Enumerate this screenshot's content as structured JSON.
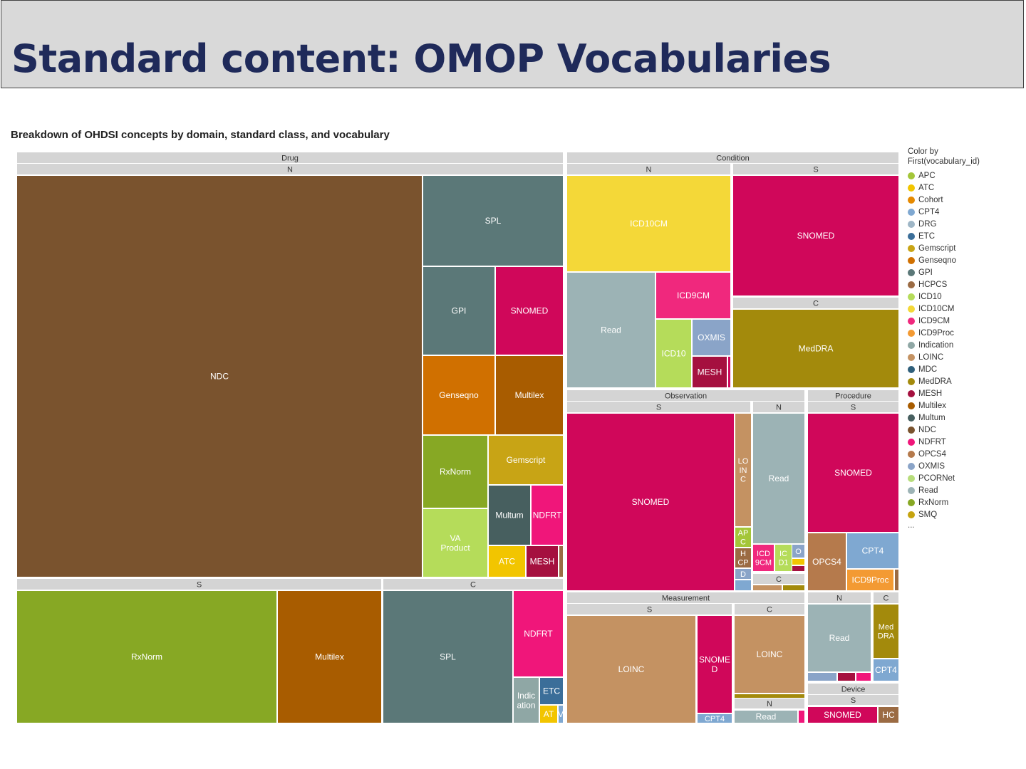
{
  "slide": {
    "title": "Standard content: OMOP Vocabularies"
  },
  "chart_data": {
    "type": "treemap",
    "title": "Breakdown of OHDSI concepts by domain, standard class, and vocabulary",
    "legend": {
      "title_line1": "Color by",
      "title_line2": "First(vocabulary_id)",
      "more": "...",
      "placement": "right",
      "items": [
        {
          "label": "APC",
          "color": "#a4c639"
        },
        {
          "label": "ATC",
          "color": "#f2c500"
        },
        {
          "label": "Cohort",
          "color": "#e68a00"
        },
        {
          "label": "CPT4",
          "color": "#7fa8d1"
        },
        {
          "label": "DRG",
          "color": "#9eb6c6"
        },
        {
          "label": "ETC",
          "color": "#3b6e99"
        },
        {
          "label": "Gemscript",
          "color": "#c8a415"
        },
        {
          "label": "Genseqno",
          "color": "#d07000"
        },
        {
          "label": "GPI",
          "color": "#5b7878"
        },
        {
          "label": "HCPCS",
          "color": "#9b6b43"
        },
        {
          "label": "ICD10",
          "color": "#b5dc5a"
        },
        {
          "label": "ICD10CM",
          "color": "#f4d838"
        },
        {
          "label": "ICD9CM",
          "color": "#f0287d"
        },
        {
          "label": "ICD9Proc",
          "color": "#f39a33"
        },
        {
          "label": "Indication",
          "color": "#8fa7a5"
        },
        {
          "label": "LOINC",
          "color": "#c49262"
        },
        {
          "label": "MDC",
          "color": "#2f5f7a"
        },
        {
          "label": "MedDRA",
          "color": "#a38a0c"
        },
        {
          "label": "MESH",
          "color": "#a5103f"
        },
        {
          "label": "Multilex",
          "color": "#a85c00"
        },
        {
          "label": "Multum",
          "color": "#475f5f"
        },
        {
          "label": "NDC",
          "color": "#7a532e"
        },
        {
          "label": "NDFRT",
          "color": "#f0167a"
        },
        {
          "label": "OPCS4",
          "color": "#b57a4c"
        },
        {
          "label": "OXMIS",
          "color": "#8aa4c8"
        },
        {
          "label": "PCORNet",
          "color": "#b7dd7b"
        },
        {
          "label": "Read",
          "color": "#9cb3b5"
        },
        {
          "label": "RxNorm",
          "color": "#87a824"
        },
        {
          "label": "SMQ",
          "color": "#c6a40f"
        }
      ]
    },
    "headers": [
      {
        "text": "Drug"
      },
      {
        "text": "N"
      },
      {
        "text": "S"
      },
      {
        "text": "C"
      },
      {
        "text": "Condition"
      },
      {
        "text": "N"
      },
      {
        "text": "S"
      },
      {
        "text": "C"
      },
      {
        "text": "Observation"
      },
      {
        "text": "S"
      },
      {
        "text": "N"
      },
      {
        "text": "C"
      },
      {
        "text": "Procedure"
      },
      {
        "text": "S"
      },
      {
        "text": "Measurement"
      },
      {
        "text": "S"
      },
      {
        "text": "C"
      },
      {
        "text": "N"
      },
      {
        "text": "N"
      },
      {
        "text": "C"
      },
      {
        "text": "Device"
      },
      {
        "text": "S"
      }
    ],
    "cells": [
      {
        "domain": "Drug",
        "class": "N",
        "vocabulary": "NDC",
        "label": "NDC",
        "color": "#7a532e"
      },
      {
        "domain": "Drug",
        "class": "N",
        "vocabulary": "SPL",
        "label": "SPL",
        "color": "#5b7878"
      },
      {
        "domain": "Drug",
        "class": "N",
        "vocabulary": "GPI",
        "label": "GPI",
        "color": "#5b7878"
      },
      {
        "domain": "Drug",
        "class": "N",
        "vocabulary": "SNOMED",
        "label": "SNOMED",
        "color": "#d0075a"
      },
      {
        "domain": "Drug",
        "class": "N",
        "vocabulary": "Genseqno",
        "label": "Genseqno",
        "color": "#d07000"
      },
      {
        "domain": "Drug",
        "class": "N",
        "vocabulary": "Multilex",
        "label": "Multilex",
        "color": "#a85c00"
      },
      {
        "domain": "Drug",
        "class": "N",
        "vocabulary": "RxNorm",
        "label": "RxNorm",
        "color": "#87a824"
      },
      {
        "domain": "Drug",
        "class": "N",
        "vocabulary": "Gemscript",
        "label": "Gemscript",
        "color": "#c8a415"
      },
      {
        "domain": "Drug",
        "class": "N",
        "vocabulary": "VA Product",
        "label": "VA Product",
        "color": "#b5dc5a"
      },
      {
        "domain": "Drug",
        "class": "N",
        "vocabulary": "Multum",
        "label": "Multum",
        "color": "#475f5f"
      },
      {
        "domain": "Drug",
        "class": "N",
        "vocabulary": "NDFRT",
        "label": "NDFRT",
        "color": "#f0167a"
      },
      {
        "domain": "Drug",
        "class": "N",
        "vocabulary": "ATC",
        "label": "ATC",
        "color": "#f2c500"
      },
      {
        "domain": "Drug",
        "class": "N",
        "vocabulary": "MESH",
        "label": "MESH",
        "color": "#a5103f"
      },
      {
        "domain": "Drug",
        "class": "N",
        "vocabulary": "",
        "label": "",
        "color": "#9b6b43"
      },
      {
        "domain": "Drug",
        "class": "S",
        "vocabulary": "RxNorm",
        "label": "RxNorm",
        "color": "#87a824"
      },
      {
        "domain": "Drug",
        "class": "S",
        "vocabulary": "Multilex",
        "label": "Multilex",
        "color": "#a85c00"
      },
      {
        "domain": "Drug",
        "class": "C",
        "vocabulary": "SPL",
        "label": "SPL",
        "color": "#5b7878"
      },
      {
        "domain": "Drug",
        "class": "C",
        "vocabulary": "NDFRT",
        "label": "NDFRT",
        "color": "#f0167a"
      },
      {
        "domain": "Drug",
        "class": "C",
        "vocabulary": "Indication",
        "label": "Indic ation",
        "color": "#8fa7a5"
      },
      {
        "domain": "Drug",
        "class": "C",
        "vocabulary": "ETC",
        "label": "ETC",
        "color": "#3b6e99"
      },
      {
        "domain": "Drug",
        "class": "C",
        "vocabulary": "ATC",
        "label": "AT",
        "color": "#f2c500"
      },
      {
        "domain": "Drug",
        "class": "C",
        "vocabulary": "",
        "label": "V",
        "color": "#7fa8d1"
      },
      {
        "domain": "Condition",
        "class": "N",
        "vocabulary": "ICD10CM",
        "label": "ICD10CM",
        "color": "#f4d838"
      },
      {
        "domain": "Condition",
        "class": "N",
        "vocabulary": "Read",
        "label": "Read",
        "color": "#9cb3b5"
      },
      {
        "domain": "Condition",
        "class": "N",
        "vocabulary": "ICD9CM",
        "label": "ICD9CM",
        "color": "#f0287d"
      },
      {
        "domain": "Condition",
        "class": "N",
        "vocabulary": "ICD10",
        "label": "ICD10",
        "color": "#b5dc5a"
      },
      {
        "domain": "Condition",
        "class": "N",
        "vocabulary": "OXMIS",
        "label": "OXMIS",
        "color": "#8aa4c8"
      },
      {
        "domain": "Condition",
        "class": "N",
        "vocabulary": "MESH",
        "label": "MESH",
        "color": "#a5103f"
      },
      {
        "domain": "Condition",
        "class": "N",
        "vocabulary": "",
        "label": "",
        "color": "#d0075a"
      },
      {
        "domain": "Condition",
        "class": "S",
        "vocabulary": "SNOMED",
        "label": "SNOMED",
        "color": "#d0075a"
      },
      {
        "domain": "Condition",
        "class": "C",
        "vocabulary": "MedDRA",
        "label": "MedDRA",
        "color": "#a38a0c"
      },
      {
        "domain": "Observation",
        "class": "S",
        "vocabulary": "SNOMED",
        "label": "SNOMED",
        "color": "#d0075a"
      },
      {
        "domain": "Observation",
        "class": "S",
        "vocabulary": "LOINC",
        "label": "LO IN C",
        "color": "#c49262"
      },
      {
        "domain": "Observation",
        "class": "S",
        "vocabulary": "APC",
        "label": "AP C",
        "color": "#a4c639"
      },
      {
        "domain": "Observation",
        "class": "S",
        "vocabulary": "HCPCS",
        "label": "H CP",
        "color": "#9b6b43"
      },
      {
        "domain": "Observation",
        "class": "S",
        "vocabulary": "",
        "label": "D",
        "color": "#8aa4c8"
      },
      {
        "domain": "Observation",
        "class": "S",
        "vocabulary": "",
        "label": "",
        "color": "#7fa8d1"
      },
      {
        "domain": "Observation",
        "class": "N",
        "vocabulary": "Read",
        "label": "Read",
        "color": "#9cb3b5"
      },
      {
        "domain": "Observation",
        "class": "N",
        "vocabulary": "ICD9CM",
        "label": "ICD 9CM",
        "color": "#f0287d"
      },
      {
        "domain": "Observation",
        "class": "N",
        "vocabulary": "ICD10",
        "label": "IC D1",
        "color": "#b5dc5a"
      },
      {
        "domain": "Observation",
        "class": "N",
        "vocabulary": "OXMIS",
        "label": "O",
        "color": "#8aa4c8"
      },
      {
        "domain": "Observation",
        "class": "N",
        "vocabulary": "",
        "label": "",
        "color": "#f2c500"
      },
      {
        "domain": "Observation",
        "class": "N",
        "vocabulary": "",
        "label": "",
        "color": "#a5103f"
      },
      {
        "domain": "Observation",
        "class": "C",
        "vocabulary": "",
        "label": "",
        "color": "#c49262"
      },
      {
        "domain": "Observation",
        "class": "C",
        "vocabulary": "",
        "label": "",
        "color": "#a38a0c"
      },
      {
        "domain": "Procedure",
        "class": "S",
        "vocabulary": "SNOMED",
        "label": "SNOMED",
        "color": "#d0075a"
      },
      {
        "domain": "Procedure",
        "class": "S",
        "vocabulary": "OPCS4",
        "label": "OPCS4",
        "color": "#b57a4c"
      },
      {
        "domain": "Procedure",
        "class": "S",
        "vocabulary": "CPT4",
        "label": "CPT4",
        "color": "#7fa8d1"
      },
      {
        "domain": "Procedure",
        "class": "S",
        "vocabulary": "ICD9Proc",
        "label": "ICD9Proc",
        "color": "#f39a33"
      },
      {
        "domain": "Procedure",
        "class": "S",
        "vocabulary": "",
        "label": "",
        "color": "#9b6b43"
      },
      {
        "domain": "Measurement",
        "class": "S",
        "vocabulary": "LOINC",
        "label": "LOINC",
        "color": "#c49262"
      },
      {
        "domain": "Measurement",
        "class": "S",
        "vocabulary": "SNOMED",
        "label": "SNOME D",
        "color": "#d0075a"
      },
      {
        "domain": "Measurement",
        "class": "S",
        "vocabulary": "CPT4",
        "label": "CPT4",
        "color": "#7fa8d1"
      },
      {
        "domain": "Measurement",
        "class": "C",
        "vocabulary": "LOINC",
        "label": "LOINC",
        "color": "#c49262"
      },
      {
        "domain": "Measurement",
        "class": "C",
        "vocabulary": "",
        "label": "",
        "color": "#a38a0c"
      },
      {
        "domain": "Measurement",
        "class": "N",
        "vocabulary": "Read",
        "label": "Read",
        "color": "#9cb3b5"
      },
      {
        "domain": "Measurement",
        "class": "N",
        "vocabulary": "",
        "label": "",
        "color": "#f0167a"
      },
      {
        "domain": "Procedure",
        "class": "N",
        "vocabulary": "Read",
        "label": "Read",
        "color": "#9cb3b5"
      },
      {
        "domain": "Procedure",
        "class": "N",
        "vocabulary": "",
        "label": "",
        "color": "#8aa4c8"
      },
      {
        "domain": "Procedure",
        "class": "N",
        "vocabulary": "",
        "label": "",
        "color": "#a5103f"
      },
      {
        "domain": "Procedure",
        "class": "N",
        "vocabulary": "",
        "label": "",
        "color": "#f0167a"
      },
      {
        "domain": "Procedure",
        "class": "C",
        "vocabulary": "MedDRA",
        "label": "Med DRA",
        "color": "#a38a0c"
      },
      {
        "domain": "Procedure",
        "class": "C",
        "vocabulary": "CPT4",
        "label": "CPT4",
        "color": "#7fa8d1"
      },
      {
        "domain": "Device",
        "class": "S",
        "vocabulary": "SNOMED",
        "label": "SNOMED",
        "color": "#d0075a"
      },
      {
        "domain": "Device",
        "class": "S",
        "vocabulary": "HCPCS",
        "label": "HC",
        "color": "#9b6b43"
      }
    ]
  }
}
